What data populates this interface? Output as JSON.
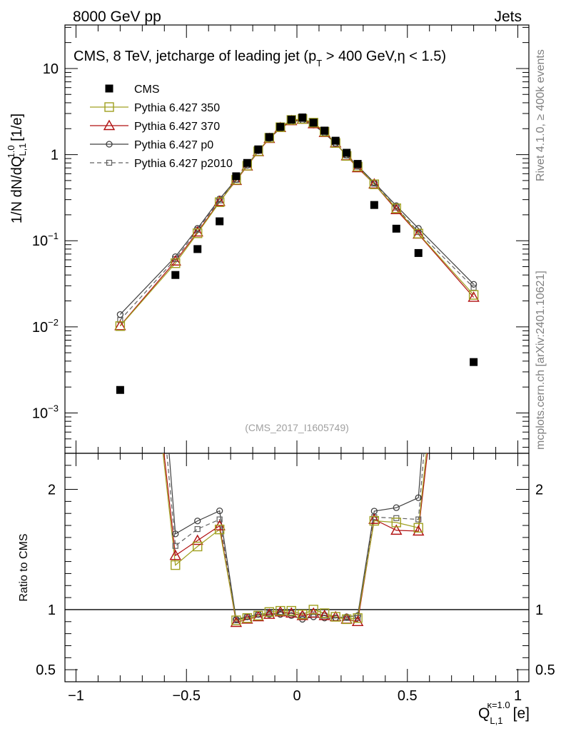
{
  "header": {
    "left": "8000 GeV pp",
    "right": "Jets"
  },
  "side_labels": {
    "rivet": "Rivet 4.1.0, ≥ 400k events",
    "mcplots": "mcplots.cern.ch [arXiv:2401.10621]"
  },
  "chart_data": {
    "type": "line",
    "title": "CMS, 8 TeV, jetcharge of leading jet (p_T > 400 GeV,η < 1.5)",
    "title_parts": {
      "pre": "CMS, 8 TeV, jetcharge of leading jet (p",
      "sub": "T",
      "post": " > 400 GeV,η < 1.5)"
    },
    "analysis_id": "(CMS_2017_I1605749)",
    "xlabel": "Q_L,1^κ=1.0 [e]",
    "xlabel_parts": {
      "main": "Q",
      "sup": "κ=1.0",
      "sub": "L,1",
      "unit": "[e]"
    },
    "ylabel": "1/N dN/dQ_L,1^1.0 [1/e]",
    "ylabel_parts": {
      "pre": "1/N dN/dQ",
      "sup": "1.0",
      "sub": "L,1",
      "unit": " [1/e]"
    },
    "ratio_ylabel": "Ratio to CMS",
    "xlim": [
      -1.05,
      1.05
    ],
    "ylim": [
      0.00034,
      32
    ],
    "ratio_ylim": [
      0.4,
      2.3
    ],
    "yscale": "log",
    "x_ticks": [
      -1,
      -0.5,
      0,
      0.5,
      1
    ],
    "x_tick_labels": [
      "−1",
      "−0.5",
      "0",
      "0.5",
      "1"
    ],
    "y_ticks": [
      {
        "value": 0.001,
        "base": "10",
        "exp": "−3"
      },
      {
        "value": 0.01,
        "base": "10",
        "exp": "−2"
      },
      {
        "value": 0.1,
        "base": "10",
        "exp": "−1"
      },
      {
        "value": 1,
        "label": "1"
      },
      {
        "value": 10,
        "label": "10"
      }
    ],
    "ratio_y_ticks": [
      {
        "value": 0.5,
        "label": "0.5"
      },
      {
        "value": 1,
        "label": "1"
      },
      {
        "value": 2,
        "label": "2"
      }
    ],
    "x": [
      -0.8,
      -0.55,
      -0.45,
      -0.35,
      -0.275,
      -0.225,
      -0.175,
      -0.125,
      -0.075,
      -0.025,
      0.025,
      0.075,
      0.125,
      0.175,
      0.225,
      0.275,
      0.35,
      0.45,
      0.55,
      0.8
    ],
    "series": [
      {
        "name": "CMS",
        "marker": "filled-square",
        "line": "none",
        "color": "#000000",
        "values": [
          0.00185,
          0.04,
          0.08,
          0.168,
          0.56,
          0.8,
          1.15,
          1.6,
          2.1,
          2.55,
          2.7,
          2.35,
          1.9,
          1.45,
          1.05,
          0.78,
          0.26,
          0.138,
          0.072,
          0.0039
        ]
      },
      {
        "name": "Pythia 6.427 350",
        "marker": "open-square",
        "line": "solid",
        "color": "#a0a020",
        "values": [
          0.0102,
          0.0548,
          0.122,
          0.28,
          0.51,
          0.744,
          1.093,
          1.568,
          2.079,
          2.525,
          2.592,
          2.35,
          1.843,
          1.363,
          0.966,
          0.725,
          0.452,
          0.238,
          0.121,
          0.0235
        ]
      },
      {
        "name": "Pythia 6.427 370",
        "marker": "open-triangle",
        "line": "solid",
        "color": "#b01010",
        "values": [
          0.0103,
          0.058,
          0.126,
          0.285,
          0.5,
          0.736,
          1.081,
          1.536,
          2.058,
          2.474,
          2.565,
          2.279,
          1.805,
          1.363,
          0.966,
          0.702,
          0.455,
          0.229,
          0.119,
          0.022
        ]
      },
      {
        "name": "Pythia 6.427 p0",
        "marker": "open-circle",
        "line": "solid",
        "color": "#404040",
        "values": [
          0.0139,
          0.0652,
          0.139,
          0.306,
          0.515,
          0.752,
          1.104,
          1.536,
          2.016,
          2.423,
          2.484,
          2.209,
          1.767,
          1.349,
          0.987,
          0.741,
          0.473,
          0.255,
          0.139,
          0.0312
        ]
      },
      {
        "name": "Pythia 6.427 p2010",
        "marker": "open-square-small",
        "line": "dashed",
        "color": "#606060",
        "values": [
          0.012,
          0.0612,
          0.1336,
          0.294,
          0.51,
          0.752,
          1.104,
          1.552,
          2.037,
          2.474,
          2.565,
          2.256,
          1.805,
          1.349,
          0.977,
          0.725,
          0.46,
          0.243,
          0.126,
          0.0285
        ]
      }
    ]
  }
}
